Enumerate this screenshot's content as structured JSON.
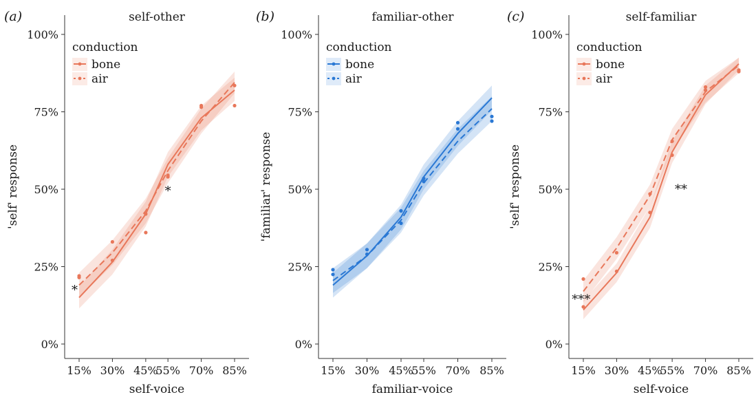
{
  "chart_data": [
    {
      "type": "line",
      "panel_label": "(a)",
      "title": "self-other",
      "xlabel": "self-voice",
      "ylabel": "'self' response",
      "categories": [
        "15%",
        "30%",
        "45%",
        "55%",
        "70%",
        "85%"
      ],
      "x": [
        15,
        30,
        45,
        55,
        70,
        85
      ],
      "yticks": [
        "0%",
        "25%",
        "50%",
        "75%",
        "100%"
      ],
      "ylim": [
        0,
        100
      ],
      "color": "#e8775a",
      "legend": {
        "title": "conduction",
        "position": "top-left",
        "entries": [
          "bone",
          "air"
        ]
      },
      "series": [
        {
          "name": "bone",
          "style": "solid",
          "fit": [
            15,
            26.5,
            42,
            58,
            73,
            82
          ],
          "ci_low": [
            11.5,
            22.5,
            38,
            54,
            69,
            78.5
          ],
          "ci_high": [
            18.5,
            30.5,
            46,
            62,
            77,
            86
          ],
          "points": [
            22,
            27,
            36,
            54,
            77,
            83.5
          ]
        },
        {
          "name": "air",
          "style": "dashed",
          "fit": [
            19,
            29.5,
            43,
            56,
            72,
            84.5
          ],
          "ci_low": [
            15,
            25.5,
            39,
            52,
            68,
            81
          ],
          "ci_high": [
            23,
            33.5,
            47,
            60,
            76,
            88
          ],
          "points": [
            21.5,
            33,
            42,
            54.5,
            76.5,
            77
          ]
        }
      ],
      "annotations": [
        {
          "text": "*",
          "x": 13,
          "y": 17.5
        },
        {
          "text": "*",
          "x": 55,
          "y": 49.5
        }
      ]
    },
    {
      "type": "line",
      "panel_label": "(b)",
      "title": "familiar-other",
      "xlabel": "familiar-voice",
      "ylabel": "'familiar' response",
      "categories": [
        "15%",
        "30%",
        "45%",
        "55%",
        "70%",
        "85%"
      ],
      "x": [
        15,
        30,
        45,
        55,
        70,
        85
      ],
      "yticks": [
        "0%",
        "25%",
        "50%",
        "75%",
        "100%"
      ],
      "ylim": [
        0,
        100
      ],
      "color": "#2a78d4",
      "legend": {
        "title": "conduction",
        "position": "top-left",
        "entries": [
          "bone",
          "air"
        ]
      },
      "series": [
        {
          "name": "bone",
          "style": "solid",
          "fit": [
            19,
            28.5,
            41,
            54,
            68,
            79.5
          ],
          "ci_low": [
            15,
            24.5,
            37,
            50,
            64,
            75.5
          ],
          "ci_high": [
            23,
            32.5,
            45,
            58,
            72,
            83.5
          ],
          "points": [
            24,
            30.5,
            39,
            52.5,
            71.5,
            73.5
          ]
        },
        {
          "name": "air",
          "style": "dashed",
          "fit": [
            20.5,
            28.5,
            40,
            52,
            65.5,
            76
          ],
          "ci_low": [
            16.5,
            24.5,
            36,
            48,
            61.5,
            72
          ],
          "ci_high": [
            24.5,
            32.5,
            44,
            56,
            69.5,
            80
          ],
          "points": [
            22.5,
            29,
            43,
            53.5,
            69.5,
            72
          ]
        }
      ],
      "annotations": []
    },
    {
      "type": "line",
      "panel_label": "(c)",
      "title": "self-familiar",
      "xlabel": "self-voice",
      "ylabel": "'self' response",
      "categories": [
        "15%",
        "30%",
        "45%",
        "55%",
        "70%",
        "85%"
      ],
      "x": [
        15,
        30,
        45,
        55,
        70,
        85
      ],
      "yticks": [
        "0%",
        "25%",
        "50%",
        "75%",
        "100%"
      ],
      "ylim": [
        0,
        100
      ],
      "color": "#e8775a",
      "legend": {
        "title": "conduction",
        "position": "top-left",
        "entries": [
          "bone",
          "air"
        ]
      },
      "series": [
        {
          "name": "bone",
          "style": "solid",
          "fit": [
            11,
            23,
            41,
            62,
            80.5,
            90.5
          ],
          "ci_low": [
            8,
            20,
            37.5,
            58.5,
            77.5,
            88.5
          ],
          "ci_high": [
            14,
            26,
            44.5,
            65.5,
            83.5,
            92.5
          ],
          "points": [
            12,
            23.5,
            42.5,
            61,
            83,
            88
          ]
        },
        {
          "name": "air",
          "style": "dashed",
          "fit": [
            17,
            31,
            48,
            66,
            81.5,
            90
          ],
          "ci_low": [
            13.5,
            27.5,
            44.5,
            62.5,
            78,
            87.5
          ],
          "ci_high": [
            20.5,
            34.5,
            51.5,
            69.5,
            85,
            92.5
          ],
          "points": [
            21,
            29.5,
            48.5,
            65.5,
            82,
            88.5
          ]
        }
      ],
      "annotations": [
        {
          "text": "***",
          "x": 14,
          "y": 14.5
        },
        {
          "text": "**",
          "x": 59,
          "y": 50
        }
      ]
    }
  ]
}
